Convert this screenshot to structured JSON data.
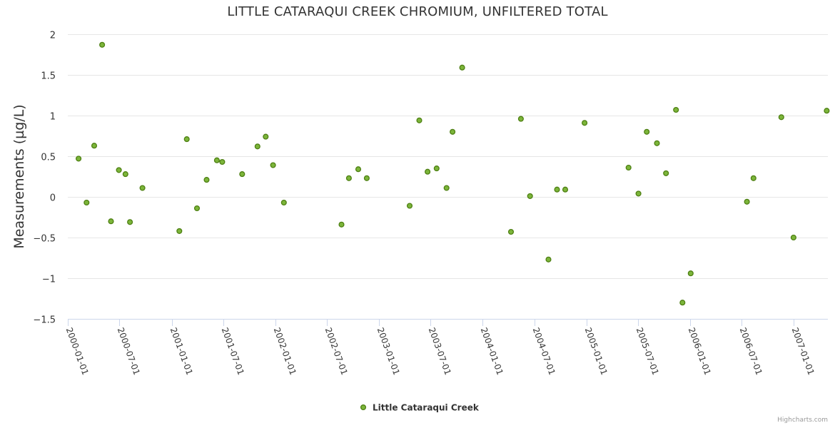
{
  "chart_data": {
    "type": "scatter",
    "title": "LITTLE CATARAQUI CREEK CHROMIUM, UNFILTERED TOTAL",
    "xlabel": "",
    "ylabel": "Measurements (µg/L)",
    "ylim": [
      -1.5,
      2
    ],
    "y_ticks": [
      -1.5,
      -1,
      -0.5,
      0,
      0.5,
      1,
      1.5,
      2
    ],
    "y_tick_labels": [
      "−1.5",
      "−1",
      "−0.5",
      "0",
      "0.5",
      "1",
      "1.5",
      "2"
    ],
    "x_ticks": [
      "2000-01-01",
      "2000-07-01",
      "2001-01-01",
      "2001-07-01",
      "2002-01-01",
      "2002-07-01",
      "2003-01-01",
      "2003-07-01",
      "2004-01-01",
      "2004-07-01",
      "2005-01-01",
      "2005-07-01",
      "2006-01-01",
      "2006-07-01",
      "2007-01-01"
    ],
    "xlim": [
      "2000-01-01",
      "2007-05-01"
    ],
    "grid": true,
    "legend": "bottom-center",
    "series": [
      {
        "name": "Little Cataraqui Creek",
        "color": "#7cb53a",
        "points": [
          {
            "x": "2000-02-08",
            "y": 0.47
          },
          {
            "x": "2000-03-07",
            "y": -0.07
          },
          {
            "x": "2000-04-03",
            "y": 0.63
          },
          {
            "x": "2000-05-01",
            "y": 1.87
          },
          {
            "x": "2000-06-01",
            "y": -0.3
          },
          {
            "x": "2000-06-29",
            "y": 0.33
          },
          {
            "x": "2000-07-22",
            "y": 0.28
          },
          {
            "x": "2000-08-07",
            "y": -0.31
          },
          {
            "x": "2000-09-20",
            "y": 0.11
          },
          {
            "x": "2001-01-28",
            "y": -0.42
          },
          {
            "x": "2001-02-23",
            "y": 0.71
          },
          {
            "x": "2001-03-31",
            "y": -0.14
          },
          {
            "x": "2001-05-04",
            "y": 0.21
          },
          {
            "x": "2001-06-09",
            "y": 0.45
          },
          {
            "x": "2001-06-28",
            "y": 0.43
          },
          {
            "x": "2001-09-06",
            "y": 0.28
          },
          {
            "x": "2001-10-30",
            "y": 0.62
          },
          {
            "x": "2001-11-28",
            "y": 0.74
          },
          {
            "x": "2001-12-24",
            "y": 0.39
          },
          {
            "x": "2002-01-31",
            "y": -0.07
          },
          {
            "x": "2002-08-22",
            "y": -0.34
          },
          {
            "x": "2002-09-17",
            "y": 0.23
          },
          {
            "x": "2002-10-20",
            "y": 0.34
          },
          {
            "x": "2002-11-19",
            "y": 0.23
          },
          {
            "x": "2003-04-19",
            "y": -0.11
          },
          {
            "x": "2003-05-23",
            "y": 0.94
          },
          {
            "x": "2003-06-21",
            "y": 0.31
          },
          {
            "x": "2003-07-23",
            "y": 0.35
          },
          {
            "x": "2003-08-27",
            "y": 0.11
          },
          {
            "x": "2003-09-17",
            "y": 0.8
          },
          {
            "x": "2003-10-21",
            "y": 1.59
          },
          {
            "x": "2004-04-10",
            "y": -0.43
          },
          {
            "x": "2004-05-15",
            "y": 0.96
          },
          {
            "x": "2004-06-16",
            "y": 0.01
          },
          {
            "x": "2004-08-20",
            "y": -0.77
          },
          {
            "x": "2004-09-19",
            "y": 0.09
          },
          {
            "x": "2004-10-18",
            "y": 0.09
          },
          {
            "x": "2004-12-25",
            "y": 0.91
          },
          {
            "x": "2005-05-29",
            "y": 0.36
          },
          {
            "x": "2005-07-03",
            "y": 0.04
          },
          {
            "x": "2005-08-01",
            "y": 0.8
          },
          {
            "x": "2005-09-06",
            "y": 0.66
          },
          {
            "x": "2005-10-08",
            "y": 0.29
          },
          {
            "x": "2005-11-12",
            "y": 1.07
          },
          {
            "x": "2005-12-05",
            "y": -1.3
          },
          {
            "x": "2006-01-03",
            "y": -0.94
          },
          {
            "x": "2006-07-20",
            "y": -0.06
          },
          {
            "x": "2006-08-12",
            "y": 0.23
          },
          {
            "x": "2006-11-18",
            "y": 0.98
          },
          {
            "x": "2006-12-31",
            "y": -0.5
          },
          {
            "x": "2007-04-27",
            "y": 1.06
          }
        ]
      }
    ]
  },
  "credits": "Highcharts.com"
}
